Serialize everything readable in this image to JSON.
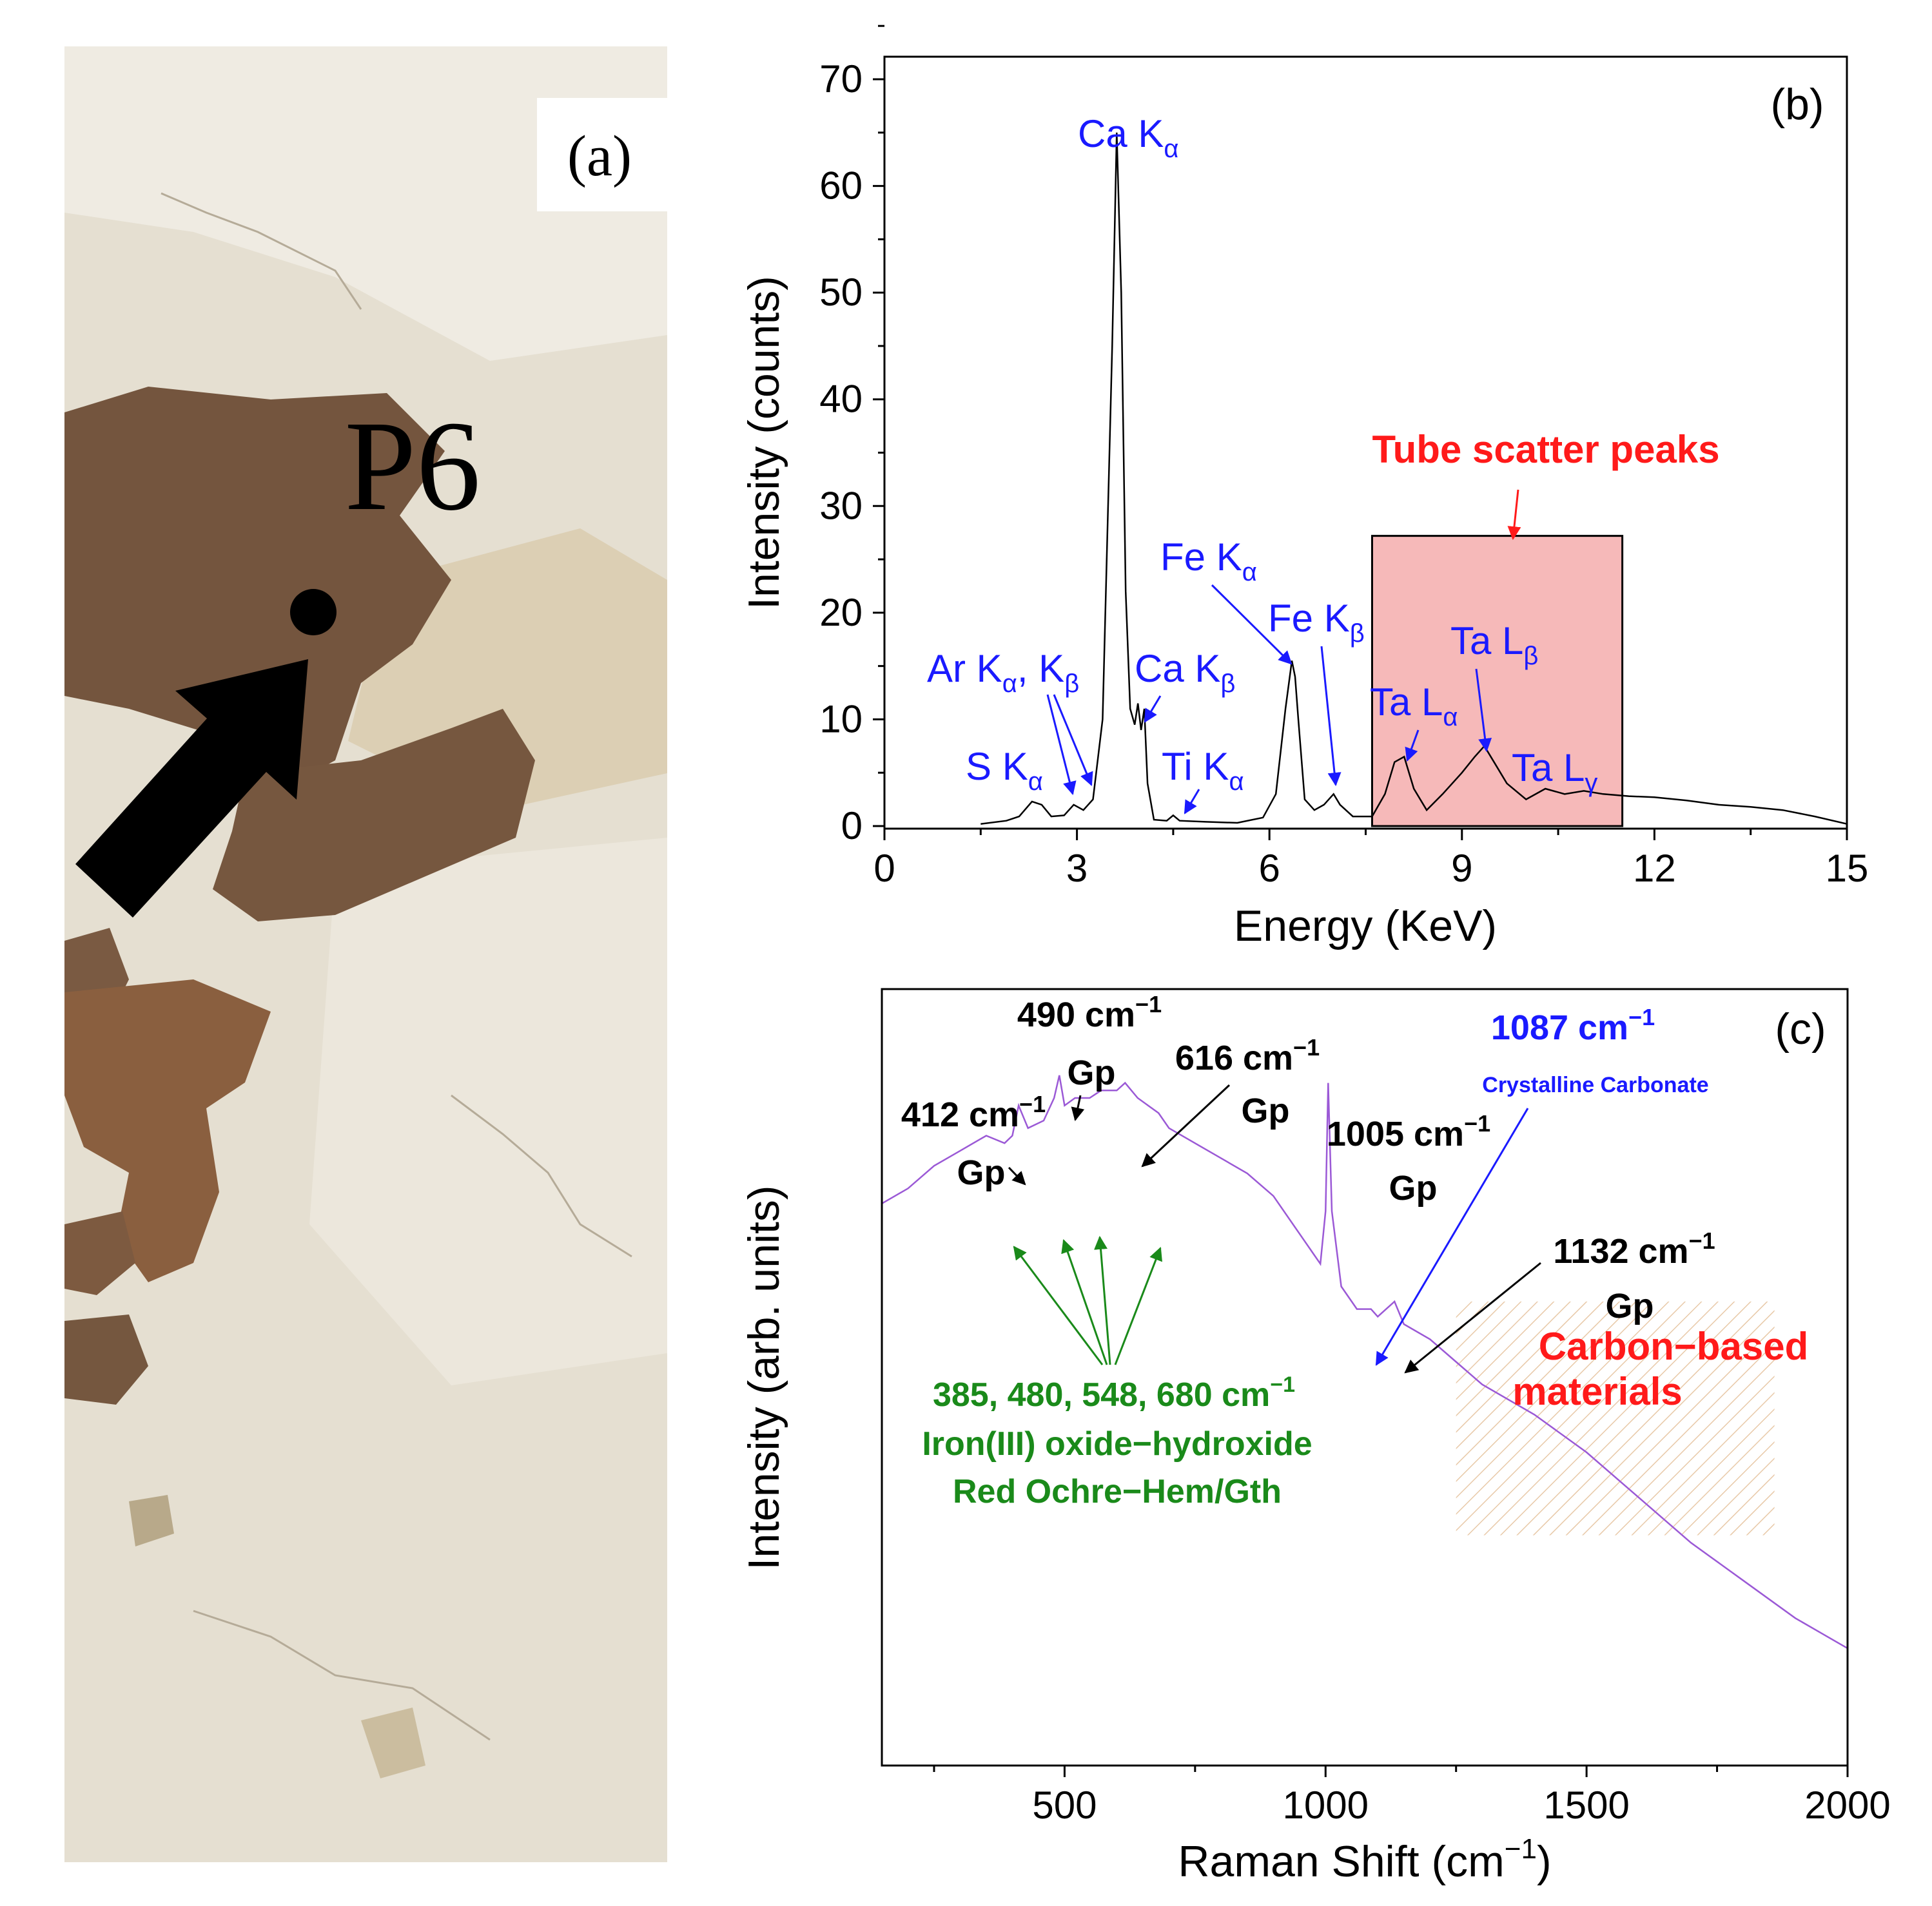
{
  "colors": {
    "axis": "#000000",
    "xrf_line": "#000000",
    "raman_line": "#9b59d6",
    "blue_label": "#1a1aff",
    "red_label": "#ff1a1a",
    "green_label": "#1a8a1a",
    "scatter_box_fill": "#f6b9b9",
    "hatch": "#e8c9a8",
    "photo_plaster": "#e7e1d3",
    "photo_pigment": "#7a5a42"
  },
  "panel_a": {
    "label": "(a)",
    "point_label": "P6"
  },
  "chart_data": [
    {
      "panel": "(b)",
      "type": "line",
      "title": "",
      "xlabel": "Energy (KeV)",
      "ylabel": "Intensity (counts)",
      "xlim": [
        0,
        15
      ],
      "ylim": [
        0,
        75
      ],
      "xticks": [
        0,
        3,
        6,
        9,
        12,
        15
      ],
      "yticks": [
        0,
        10,
        20,
        30,
        40,
        50,
        60,
        70
      ],
      "grid": false,
      "series": [
        {
          "x": [
            1.5,
            1.9,
            2.1,
            2.3,
            2.45,
            2.6,
            2.8,
            2.95,
            3.1,
            3.25,
            3.4,
            3.55,
            3.62,
            3.69,
            3.76,
            3.83,
            3.9,
            3.95,
            4.0,
            4.05,
            4.1,
            4.2,
            4.4,
            4.5,
            4.6,
            5.0,
            5.5,
            5.9,
            6.1,
            6.25,
            6.35,
            6.4,
            6.45,
            6.55,
            6.7,
            6.85,
            7.0,
            7.1,
            7.3,
            7.6,
            7.8,
            7.95,
            8.1,
            8.25,
            8.45,
            8.7,
            9.0,
            9.2,
            9.35,
            9.5,
            9.7,
            10.0,
            10.3,
            10.6,
            10.9,
            11.2,
            11.6,
            12.0,
            12.5,
            13.0,
            13.5,
            14.0,
            14.5,
            15.0
          ],
          "y": [
            0.2,
            0.5,
            0.9,
            2.3,
            2.0,
            0.9,
            1.0,
            2.0,
            1.5,
            2.5,
            10.0,
            45.0,
            65.0,
            50.0,
            22.0,
            11.0,
            9.5,
            11.5,
            9.0,
            11.0,
            4.0,
            0.6,
            0.5,
            1.0,
            0.5,
            0.4,
            0.3,
            0.8,
            3.0,
            11.0,
            15.5,
            14.0,
            10.0,
            2.5,
            1.5,
            2.0,
            3.0,
            2.0,
            0.9,
            0.9,
            3.0,
            6.0,
            6.5,
            3.5,
            1.5,
            3.0,
            5.0,
            6.5,
            7.5,
            6.0,
            4.0,
            2.5,
            3.5,
            3.0,
            3.3,
            3.0,
            2.8,
            2.7,
            2.4,
            2.0,
            1.8,
            1.5,
            0.9,
            0.2
          ]
        }
      ],
      "annotations": [
        {
          "text": "Ca K",
          "sub": "α",
          "target_x": 3.62,
          "target_y": 65.0
        },
        {
          "text": "Ar K",
          "sub": "α",
          "text2": ", K",
          "sub2": "β",
          "targets": [
            [
              2.95,
              1.0
            ],
            [
              3.25,
              2.0
            ]
          ]
        },
        {
          "text": "S K",
          "sub": "α",
          "target_x": 2.3,
          "target_y": 2.3
        },
        {
          "text": "Ca K",
          "sub": "β",
          "target_x": 4.0,
          "target_y": 10.0
        },
        {
          "text": "Ti K",
          "sub": "α",
          "target_x": 4.5,
          "target_y": 1.0
        },
        {
          "text": "Fe K",
          "sub": "α",
          "target_x": 6.35,
          "target_y": 15.5
        },
        {
          "text": "Fe K",
          "sub": "β",
          "target_x": 7.0,
          "target_y": 3.0
        },
        {
          "text": "Ta L",
          "sub": "α",
          "target_x": 8.1,
          "target_y": 6.5
        },
        {
          "text": "Ta L",
          "sub": "β",
          "target_x": 9.35,
          "target_y": 7.5
        },
        {
          "text": "Ta L",
          "sub": "γ"
        }
      ],
      "highlight": {
        "label": "Tube scatter peaks",
        "x_range": [
          7.6,
          11.5
        ],
        "y_top": 27.2
      }
    },
    {
      "panel": "(c)",
      "type": "line",
      "title": "",
      "xlabel": "Raman Shift (cm",
      "xlabel_sup": "−1",
      "xlabel_end": ")",
      "ylabel": "Intensity (arb. units)",
      "xlim": [
        150,
        2000
      ],
      "ylim": [
        0,
        100
      ],
      "xticks": [
        500,
        1000,
        1500,
        2000
      ],
      "grid": false,
      "series": [
        {
          "x": [
            150,
            200,
            250,
            300,
            350,
            385,
            400,
            412,
            430,
            460,
            480,
            490,
            500,
            520,
            548,
            570,
            600,
            616,
            640,
            680,
            700,
            750,
            800,
            850,
            900,
            950,
            990,
            1000,
            1005,
            1012,
            1030,
            1060,
            1087,
            1100,
            1132,
            1150,
            1200,
            1250,
            1300,
            1400,
            1500,
            1600,
            1700,
            1800,
            1900,
            1950,
            2000
          ],
          "y": [
            66,
            68,
            71,
            73,
            75,
            74,
            75,
            79,
            76,
            77,
            80,
            83,
            79,
            80,
            80,
            81,
            81,
            82,
            80,
            78,
            76,
            74,
            72,
            70,
            67,
            62,
            58,
            65,
            82,
            65,
            55,
            52,
            52,
            51,
            53,
            50,
            48,
            45,
            42,
            38,
            33,
            27,
            21,
            16,
            11,
            9,
            7
          ]
        }
      ],
      "annotations": [
        {
          "text": "490 cm",
          "sup": "−1",
          "line2": "Gp"
        },
        {
          "text": "616 cm",
          "sup": "−1",
          "line2": "Gp"
        },
        {
          "text": "412 cm",
          "sup": "−1",
          "line2": "Gp"
        },
        {
          "text": "1005 cm",
          "sup": "−1",
          "line2": "Gp"
        },
        {
          "text": "1132 cm",
          "sup": "−1",
          "line2": "Gp"
        },
        {
          "text": "1087 cm",
          "sup": "−1",
          "line2": "Crystalline Carbonate"
        },
        {
          "text": "385, 480, 548, 680 cm",
          "sup": "−1",
          "line2": "Iron(III) oxide−hydroxide",
          "line3": "Red Ochre−Hem/Gth",
          "targets": [
            385,
            480,
            548,
            680
          ]
        },
        {
          "text": "Carbon−based",
          "line2": "materials"
        }
      ],
      "highlight": {
        "x_range": [
          1250,
          1860
        ],
        "y_range": [
          22,
          53
        ]
      }
    }
  ]
}
